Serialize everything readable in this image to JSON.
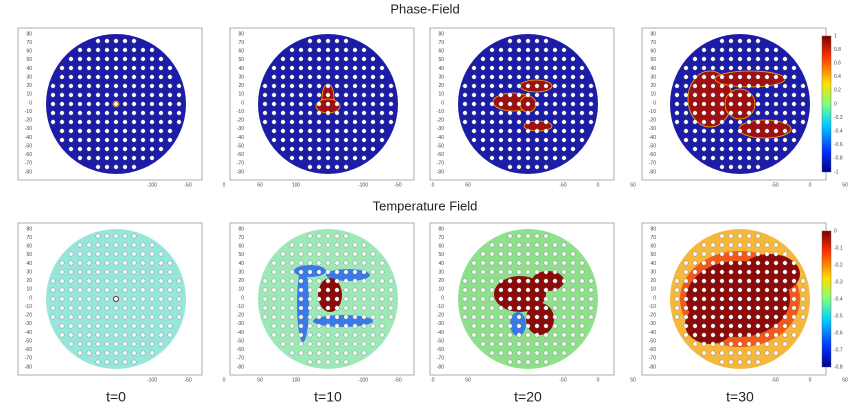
{
  "titles": {
    "phase": "Phase-Field",
    "temperature": "Temperature Field"
  },
  "time_labels": [
    "t=0",
    "t=10",
    "t=20",
    "t=30"
  ],
  "x_ticks": [
    [
      -100,
      -50,
      0,
      50,
      100
    ],
    [
      -100,
      -50,
      0,
      50
    ],
    [
      -50,
      0,
      50
    ],
    [
      -50,
      0,
      50
    ]
  ],
  "y_ticks": [
    80,
    70,
    60,
    50,
    40,
    30,
    20,
    10,
    0,
    -10,
    -20,
    -30,
    -40,
    -50,
    -60,
    -70,
    -80
  ],
  "colorbars": {
    "phase": [
      1,
      0.8,
      0.6,
      0.4,
      0.2,
      0,
      -0.2,
      -0.4,
      -0.6,
      -0.8,
      -1
    ],
    "temperature": [
      0,
      -0.1,
      -0.2,
      -0.3,
      -0.4,
      -0.5,
      -0.6,
      -0.7,
      -0.8
    ]
  }
}
